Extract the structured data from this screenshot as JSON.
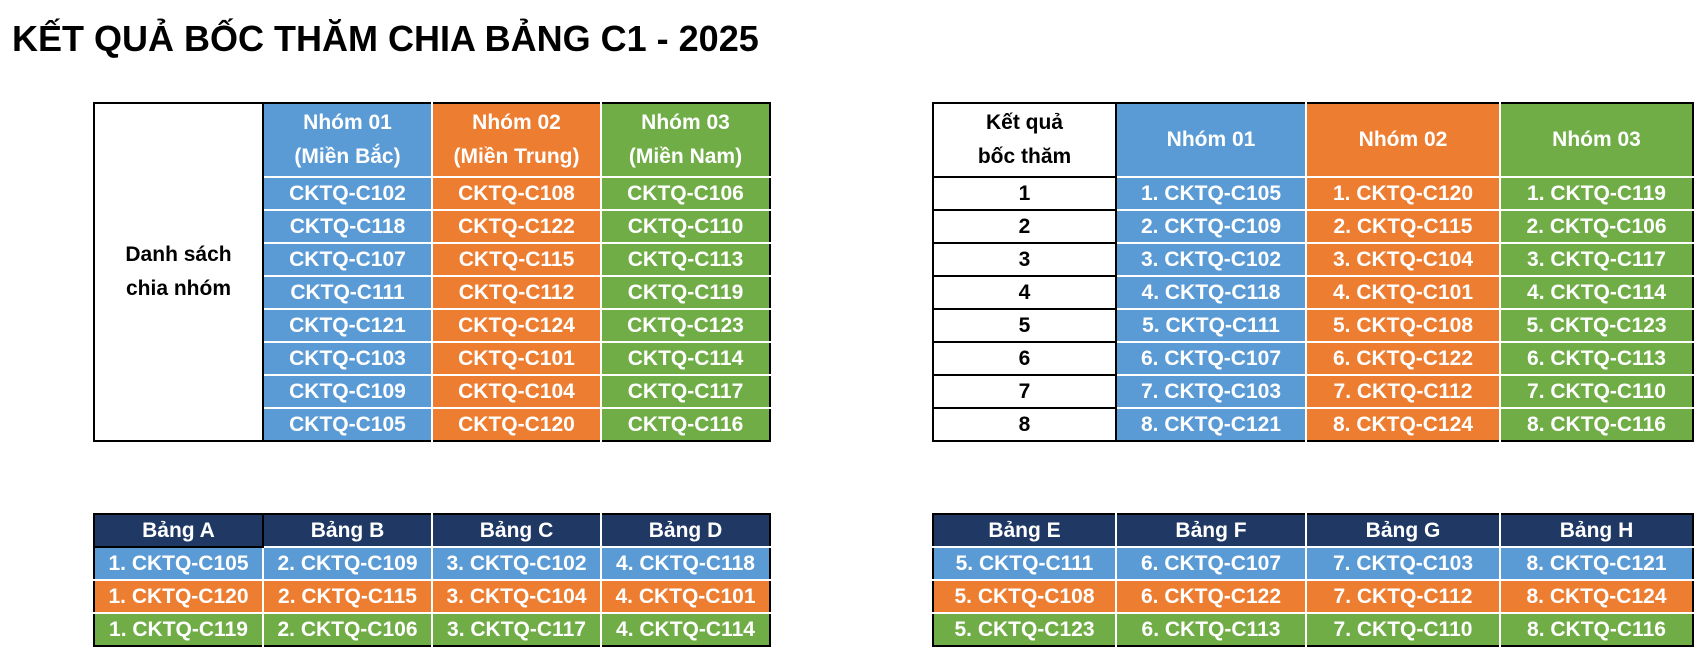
{
  "title": "KẾT QUẢ BỐC THĂM CHIA BẢNG C1 - 2025",
  "division": {
    "label_line1": "Danh sách",
    "label_line2": "chia nhóm",
    "headers": [
      {
        "line1": "Nhóm 01",
        "line2": "(Miền Bắc)"
      },
      {
        "line1": "Nhóm 02",
        "line2": "(Miền Trung)"
      },
      {
        "line1": "Nhóm 03",
        "line2": "(Miền Nam)"
      }
    ],
    "rows": [
      [
        "CKTQ-C102",
        "CKTQ-C108",
        "CKTQ-C106"
      ],
      [
        "CKTQ-C118",
        "CKTQ-C122",
        "CKTQ-C110"
      ],
      [
        "CKTQ-C107",
        "CKTQ-C115",
        "CKTQ-C113"
      ],
      [
        "CKTQ-C111",
        "CKTQ-C112",
        "CKTQ-C119"
      ],
      [
        "CKTQ-C121",
        "CKTQ-C124",
        "CKTQ-C123"
      ],
      [
        "CKTQ-C103",
        "CKTQ-C101",
        "CKTQ-C114"
      ],
      [
        "CKTQ-C109",
        "CKTQ-C104",
        "CKTQ-C117"
      ],
      [
        "CKTQ-C105",
        "CKTQ-C120",
        "CKTQ-C116"
      ]
    ]
  },
  "draw": {
    "header_line1": "Kết quả",
    "header_line2": "bốc thăm",
    "headers": [
      "Nhóm 01",
      "Nhóm 02",
      "Nhóm 03"
    ],
    "rows": [
      {
        "n": "1",
        "cells": [
          "1. CKTQ-C105",
          "1. CKTQ-C120",
          "1. CKTQ-C119"
        ]
      },
      {
        "n": "2",
        "cells": [
          "2. CKTQ-C109",
          "2. CKTQ-C115",
          "2. CKTQ-C106"
        ]
      },
      {
        "n": "3",
        "cells": [
          "3. CKTQ-C102",
          "3. CKTQ-C104",
          "3. CKTQ-C117"
        ]
      },
      {
        "n": "4",
        "cells": [
          "4. CKTQ-C118",
          "4. CKTQ-C101",
          "4. CKTQ-C114"
        ]
      },
      {
        "n": "5",
        "cells": [
          "5. CKTQ-C111",
          "5. CKTQ-C108",
          "5. CKTQ-C123"
        ]
      },
      {
        "n": "6",
        "cells": [
          "6. CKTQ-C107",
          "6. CKTQ-C122",
          "6. CKTQ-C113"
        ]
      },
      {
        "n": "7",
        "cells": [
          "7. CKTQ-C103",
          "7. CKTQ-C112",
          "7. CKTQ-C110"
        ]
      },
      {
        "n": "8",
        "cells": [
          "8. CKTQ-C121",
          "8. CKTQ-C124",
          "8. CKTQ-C116"
        ]
      }
    ]
  },
  "groups_left": {
    "headers": [
      "Bảng A",
      "Bảng B",
      "Bảng C",
      "Bảng D"
    ],
    "rows": [
      [
        "1. CKTQ-C105",
        "2. CKTQ-C109",
        "3. CKTQ-C102",
        "4. CKTQ-C118"
      ],
      [
        "1. CKTQ-C120",
        "2. CKTQ-C115",
        "3. CKTQ-C104",
        "4. CKTQ-C101"
      ],
      [
        "1. CKTQ-C119",
        "2. CKTQ-C106",
        "3. CKTQ-C117",
        "4. CKTQ-C114"
      ]
    ]
  },
  "groups_right": {
    "headers": [
      "Bảng E",
      "Bảng F",
      "Bảng G",
      "Bảng H"
    ],
    "rows": [
      [
        "5. CKTQ-C111",
        "6. CKTQ-C107",
        "7. CKTQ-C103",
        "8. CKTQ-C121"
      ],
      [
        "5. CKTQ-C108",
        "6. CKTQ-C122",
        "7. CKTQ-C112",
        "8. CKTQ-C124"
      ],
      [
        "5. CKTQ-C123",
        "6. CKTQ-C113",
        "7. CKTQ-C110",
        "8. CKTQ-C116"
      ]
    ]
  },
  "colors": {
    "nhom01": "#5b9bd5",
    "nhom02": "#ed7d31",
    "nhom03": "#70ad47",
    "group_header": "#1f3864"
  }
}
